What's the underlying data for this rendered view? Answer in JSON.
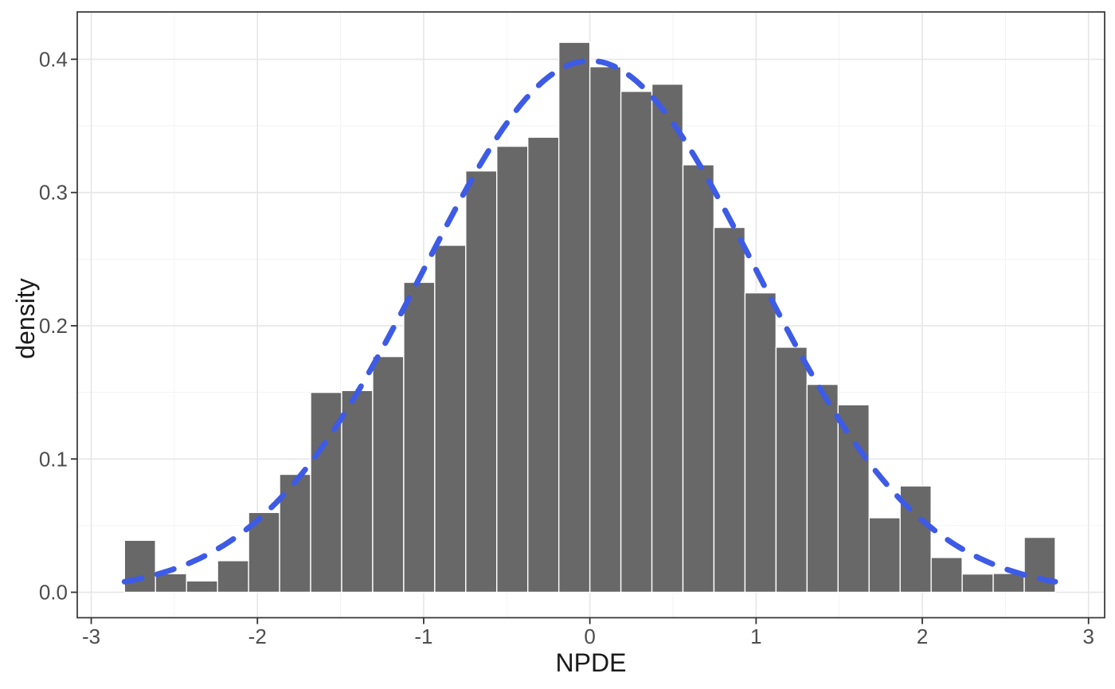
{
  "chart_data": {
    "type": "bar",
    "subtype": "histogram-with-density-overlay",
    "title": "",
    "xlabel": "NPDE",
    "ylabel": "density",
    "bins": {
      "start": -2.8,
      "width": 0.1866667,
      "count": 30
    },
    "densities": [
      0.039,
      0.0139,
      0.0085,
      0.0237,
      0.0599,
      0.0885,
      0.15,
      0.1514,
      0.1769,
      0.2326,
      0.2604,
      0.3162,
      0.3347,
      0.3415,
      0.4127,
      0.3944,
      0.3759,
      0.3813,
      0.3208,
      0.2738,
      0.2247,
      0.1839,
      0.156,
      0.1407,
      0.0559,
      0.0798,
      0.0261,
      0.0137,
      0.0141,
      0.0412
    ],
    "x_ticks": [
      {
        "value": -3,
        "label": "-3"
      },
      {
        "value": -2,
        "label": "-2"
      },
      {
        "value": -1,
        "label": "-1"
      },
      {
        "value": 0,
        "label": "0"
      },
      {
        "value": 1,
        "label": "1"
      },
      {
        "value": 2,
        "label": "2"
      },
      {
        "value": 3,
        "label": "3"
      }
    ],
    "y_ticks": [
      {
        "value": 0.0,
        "label": "0.0"
      },
      {
        "value": 0.1,
        "label": "0.1"
      },
      {
        "value": 0.2,
        "label": "0.2"
      },
      {
        "value": 0.3,
        "label": "0.3"
      },
      {
        "value": 0.4,
        "label": "0.4"
      }
    ],
    "x_minor_ticks": [
      -2.5,
      -1.5,
      -0.5,
      0.5,
      1.5,
      2.5
    ],
    "y_minor_ticks": [
      0.05,
      0.15,
      0.25,
      0.35
    ],
    "xlim": [
      -3.084,
      3.097
    ],
    "ylim": [
      -0.0191,
      0.4355
    ],
    "grid": true,
    "legend": false,
    "overlay_curve": {
      "name": "standard-normal-density",
      "distribution": "normal",
      "mean": 0,
      "sd": 1,
      "x_range": [
        -2.8,
        2.8
      ],
      "peak_density": 0.3989,
      "line_style": "dashed",
      "color": "#3D5BE5"
    },
    "style": {
      "bar_fill": "#686868",
      "bar_border": "#ffffff",
      "panel_border": "#333333",
      "grid_major": "#e6e6e6",
      "grid_minor": "#f3f3f3",
      "tick_color": "#333333",
      "tick_label_color": "#4d4d4d",
      "axis_title_color": "#1a1a1a",
      "background": "#ffffff"
    }
  }
}
